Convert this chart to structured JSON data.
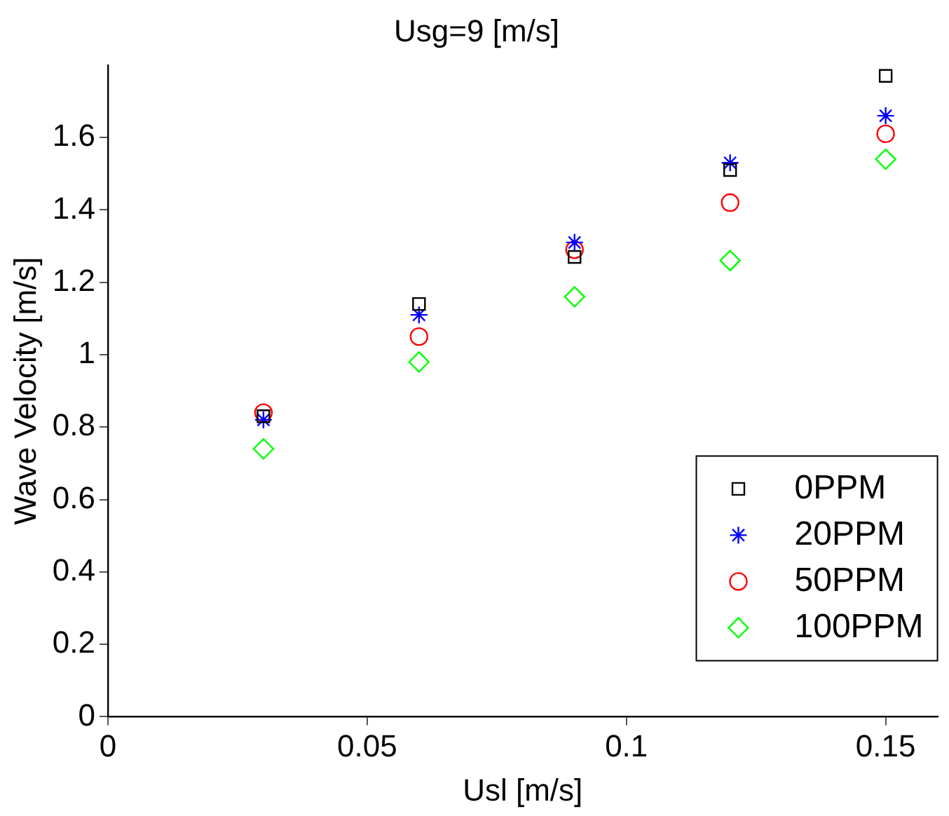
{
  "chart_data": {
    "type": "scatter",
    "title": "Usg=9 [m/s]",
    "xlabel": "Usl [m/s]",
    "ylabel": "Wave Velocity [m/s]",
    "x": [
      0.03,
      0.06,
      0.09,
      0.12,
      0.15
    ],
    "series": [
      {
        "name": "0PPM",
        "color": "#000000",
        "marker": "square",
        "values": [
          0.83,
          1.14,
          1.27,
          1.51,
          1.77
        ]
      },
      {
        "name": "20PPM",
        "color": "#0000ff",
        "marker": "cross",
        "values": [
          0.82,
          1.11,
          1.31,
          1.53,
          1.66
        ]
      },
      {
        "name": "50PPM",
        "color": "#ff0000",
        "marker": "circle",
        "values": [
          0.84,
          1.05,
          1.29,
          1.42,
          1.61
        ]
      },
      {
        "name": "100PPM",
        "color": "#00ff00",
        "marker": "diamond",
        "values": [
          0.74,
          0.98,
          1.16,
          1.26,
          1.54
        ]
      }
    ],
    "xlim": [
      0,
      0.16
    ],
    "xticks": [
      0,
      0.05,
      0.1,
      0.15
    ],
    "ylim": [
      0,
      1.8
    ],
    "yticks": [
      0,
      0.2,
      0.4,
      0.6,
      0.8,
      1,
      1.2,
      1.4,
      1.6
    ],
    "grid": false,
    "legend": "bottom right"
  }
}
